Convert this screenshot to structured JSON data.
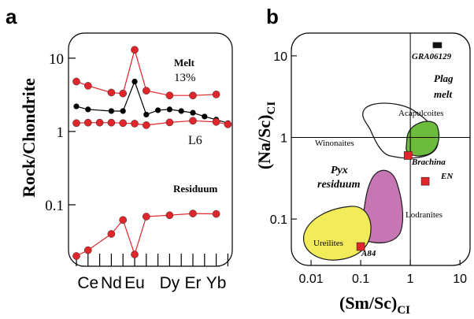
{
  "chart_data": [
    {
      "panel_label": "a",
      "type": "line",
      "ylabel": "Rock/Chondrite",
      "yscale": "log",
      "ylim": [
        0.0145,
        22
      ],
      "yticks": [
        {
          "value": 10,
          "label": "10"
        },
        {
          "value": 1,
          "label": "1"
        },
        {
          "value": 0.1,
          "label": "0.1"
        }
      ],
      "x_categories_count": 14,
      "x_tick_labels": [
        {
          "text": "Ce",
          "index": 1
        },
        {
          "text": "Nd",
          "index": 3
        },
        {
          "text": "Eu",
          "index": 5
        },
        {
          "text": "Dy",
          "index": 8
        },
        {
          "text": "Er",
          "index": 10
        },
        {
          "text": "Yb",
          "index": 12
        }
      ],
      "series": [
        {
          "name": "Melt",
          "color": "#e0252b",
          "marker": "circle-red",
          "points": [
            [
              0,
              4.8
            ],
            [
              1,
              4.2
            ],
            [
              3,
              3.4
            ],
            [
              4,
              3.3
            ],
            [
              5,
              13
            ],
            [
              6,
              3.6
            ],
            [
              8,
              3.1
            ],
            [
              10,
              3.1
            ],
            [
              12,
              3.2
            ]
          ]
        },
        {
          "name": "L6",
          "color": "#000000",
          "marker": "circle-black",
          "points": [
            [
              0,
              2.2
            ],
            [
              1,
              2.0
            ],
            [
              3,
              1.9
            ],
            [
              4,
              1.9
            ],
            [
              5,
              4.8
            ],
            [
              6,
              1.7
            ],
            [
              7,
              1.95
            ],
            [
              8,
              2.0
            ],
            [
              9,
              1.9
            ],
            [
              10,
              1.8
            ],
            [
              11,
              1.6
            ],
            [
              12,
              1.45
            ],
            [
              13,
              1.3
            ]
          ]
        },
        {
          "name": "",
          "color": "#e0252b",
          "marker": "circle-red",
          "points": [
            [
              0,
              1.3
            ],
            [
              1,
              1.32
            ],
            [
              2,
              1.32
            ],
            [
              3,
              1.32
            ],
            [
              4,
              1.3
            ],
            [
              5,
              1.28
            ],
            [
              6,
              1.22
            ],
            [
              8,
              1.33
            ],
            [
              10,
              1.4
            ],
            [
              12,
              1.35
            ],
            [
              13,
              1.25
            ]
          ]
        },
        {
          "name": "Residuum",
          "color": "#e0252b",
          "marker": "circle-red",
          "points": [
            [
              0,
              0.02
            ],
            [
              1,
              0.024
            ],
            [
              3,
              0.04
            ],
            [
              4,
              0.062
            ],
            [
              5,
              0.021
            ],
            [
              6,
              0.069
            ],
            [
              8,
              0.072
            ],
            [
              10,
              0.076
            ],
            [
              12,
              0.075
            ]
          ]
        }
      ],
      "annotations": [
        {
          "text": "Melt",
          "bold": true
        },
        {
          "text": "13%",
          "bold": false
        },
        {
          "text": "L6",
          "bold": false
        },
        {
          "text": "Residuum",
          "bold": true
        }
      ]
    },
    {
      "panel_label": "b",
      "type": "scatter",
      "xlabel": "(Sm/Sc)",
      "xlabel_sub": "CI",
      "ylabel": "(Na/Sc)",
      "ylabel_sub": "CI",
      "xscale": "log",
      "yscale": "log",
      "xlim": [
        0.004,
        16
      ],
      "ylim": [
        0.027,
        19
      ],
      "xticks": [
        {
          "value": 0.01,
          "label": "0.01"
        },
        {
          "value": 0.1,
          "label": "0.1"
        },
        {
          "value": 1,
          "label": "1"
        },
        {
          "value": 10,
          "label": "10"
        }
      ],
      "yticks": [
        {
          "value": 10,
          "label": "10"
        },
        {
          "value": 1,
          "label": "1"
        },
        {
          "value": 0.1,
          "label": "0.1"
        }
      ],
      "reference_lines": {
        "x": 1,
        "y": 1
      },
      "fields": [
        {
          "label": "Winonaites",
          "fill": "none",
          "stroke": "#1a1a1a"
        },
        {
          "label": "Acapulcoites",
          "fill": "#6dbb3c",
          "stroke": "#1a1a1a"
        },
        {
          "label": "Lodranites",
          "fill": "#c776b4",
          "stroke": "#1a1a1a"
        },
        {
          "label": "Ureilites",
          "fill": "#f2ec5a",
          "stroke": "#1a1a1a"
        }
      ],
      "points": [
        {
          "label": "GRA06129",
          "x": 3.5,
          "y": 13.5,
          "marker": "square-black"
        },
        {
          "label": "Brachina",
          "x": 0.9,
          "y": 0.6,
          "marker": "square-red"
        },
        {
          "label": "EN",
          "x": 2.0,
          "y": 0.29,
          "marker": "square-red"
        },
        {
          "label": "A84",
          "x": 0.1,
          "y": 0.046,
          "marker": "square-red"
        }
      ],
      "annotations": [
        {
          "text": "Plag",
          "style": "bold-italic"
        },
        {
          "text": "melt",
          "style": "bold-italic"
        },
        {
          "text": "Pyx",
          "style": "bold-italic"
        },
        {
          "text": "residuum",
          "style": "bold-italic"
        }
      ]
    }
  ]
}
